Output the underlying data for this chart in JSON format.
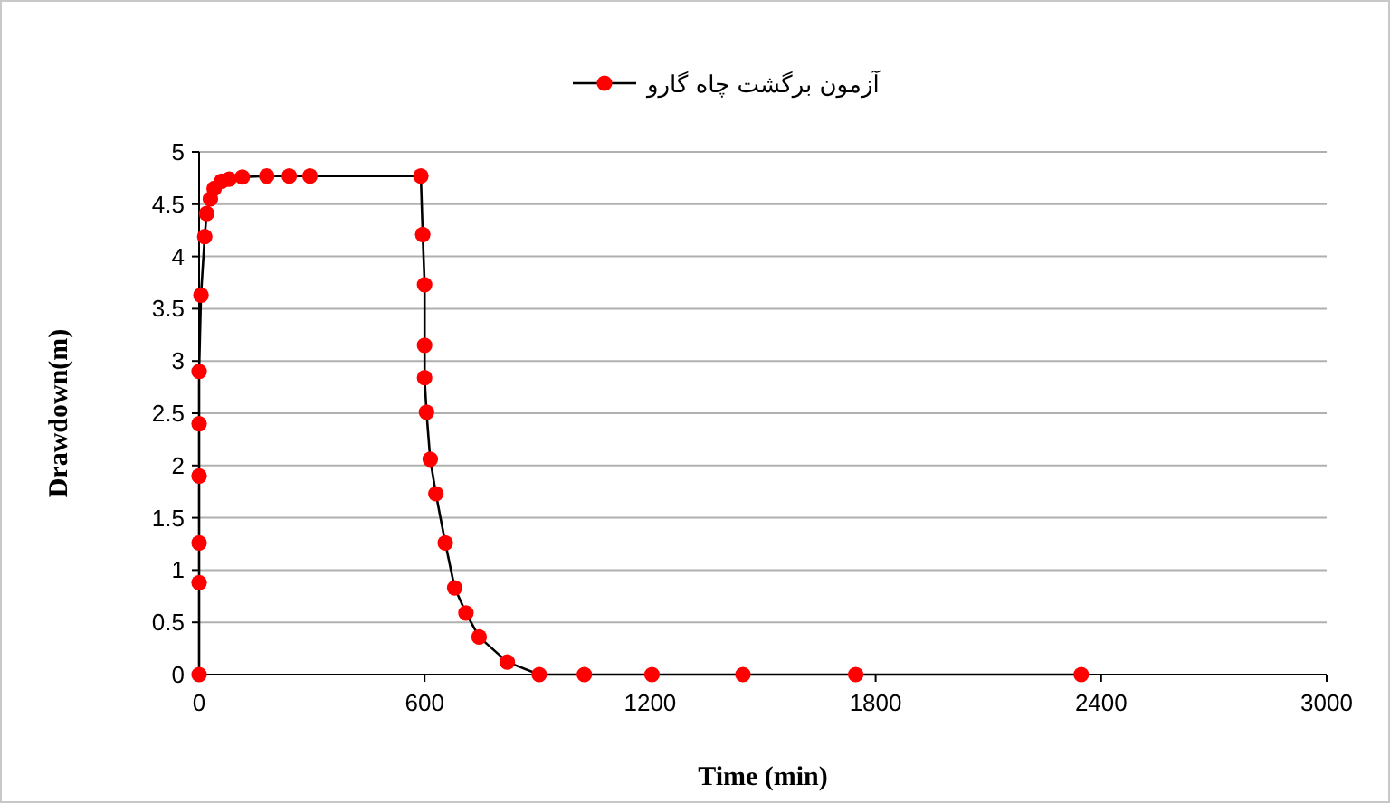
{
  "chart_data": {
    "type": "line",
    "xlabel": "Time (min)",
    "ylabel": "Drawdown(m)",
    "x": [
      0,
      0,
      0,
      0,
      0,
      0,
      5,
      15,
      20,
      30,
      40,
      60,
      80,
      115,
      180,
      240,
      295,
      590,
      595,
      600,
      600,
      600,
      605,
      615,
      630,
      655,
      680,
      710,
      745,
      820,
      905,
      1025,
      1205,
      1447,
      1747,
      2347
    ],
    "series": [
      {
        "name": "آزمون برگشت چاه گارو",
        "color": "#ff0000",
        "values": [
          0,
          0.88,
          1.26,
          1.9,
          2.4,
          2.9,
          3.63,
          4.19,
          4.41,
          4.55,
          4.65,
          4.72,
          4.74,
          4.76,
          4.77,
          4.77,
          4.77,
          4.77,
          4.21,
          3.73,
          3.15,
          2.84,
          2.51,
          2.06,
          1.73,
          1.26,
          0.83,
          0.59,
          0.36,
          0.12,
          0,
          0,
          0,
          0,
          0,
          0
        ]
      }
    ],
    "xlim": [
      0,
      3000
    ],
    "xticks": [
      0,
      600,
      1200,
      1800,
      2400,
      3000
    ],
    "ylim": [
      0,
      5
    ],
    "yticks": [
      0,
      0.5,
      1,
      1.5,
      2,
      2.5,
      3,
      3.5,
      4,
      4.5,
      5
    ],
    "grid": "y",
    "legend": "top",
    "marker": "circle",
    "line_style": "solid"
  }
}
